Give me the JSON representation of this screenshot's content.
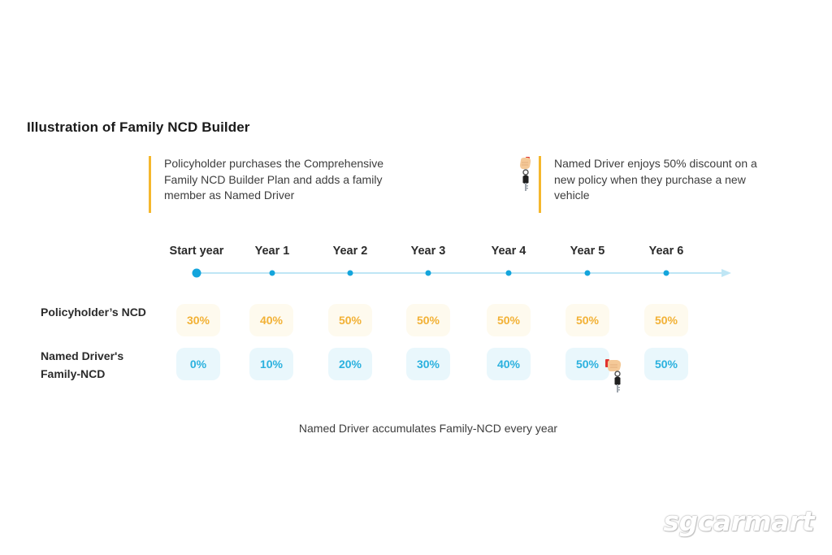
{
  "title": "Illustration of Family NCD Builder",
  "notes": {
    "left": [
      "Policyholder purchases the Comprehensive",
      "Family NCD Builder Plan and adds a family",
      "member as Named Driver"
    ],
    "right": [
      "Named Driver enjoys 50% discount on a",
      "new policy when they purchase a new",
      "vehicle"
    ]
  },
  "years": [
    "Start year",
    "Year 1",
    "Year 2",
    "Year 3",
    "Year 4",
    "Year 5",
    "Year 6"
  ],
  "rows": {
    "policyholder": {
      "label": "Policyholder’s NCD",
      "values": [
        "30%",
        "40%",
        "50%",
        "50%",
        "50%",
        "50%",
        "50%"
      ]
    },
    "named_driver": {
      "label": [
        "Named Driver's",
        "Family-NCD"
      ],
      "values": [
        "0%",
        "10%",
        "20%",
        "30%",
        "40%",
        "50%",
        "50%"
      ]
    }
  },
  "caption": "Named Driver accumulates Family-NCD every year",
  "watermark": "sgcarmart",
  "colors": {
    "accent_yellow": "#f5b72d",
    "policyholder_text": "#f2b135",
    "policyholder_bg": "#fefaee",
    "named_driver_text": "#2bb1de",
    "named_driver_bg": "#e9f7fc",
    "timeline_line": "#bfe6f5",
    "timeline_dot": "#14a5dc"
  },
  "icons": {
    "key": "car-key-in-hand-icon"
  }
}
